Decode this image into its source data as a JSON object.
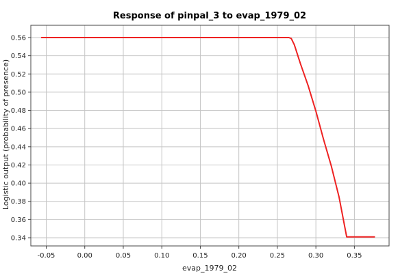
{
  "chart_data": {
    "type": "line",
    "title": "Response of pinpal_3 to evap_1979_02",
    "xlabel": "evap_1979_02",
    "ylabel": "Logistic output (probability of presence)",
    "xlim": [
      -0.07,
      0.395
    ],
    "ylim": [
      0.331,
      0.5735
    ],
    "x_ticks": [
      -0.05,
      0.0,
      0.05,
      0.1,
      0.15,
      0.2,
      0.25,
      0.3,
      0.35
    ],
    "x_tick_labels": [
      "-0.05",
      "0.00",
      "0.05",
      "0.10",
      "0.15",
      "0.20",
      "0.25",
      "0.30",
      "0.35"
    ],
    "y_ticks": [
      0.34,
      0.36,
      0.38,
      0.4,
      0.42,
      0.44,
      0.46,
      0.48,
      0.5,
      0.52,
      0.54,
      0.56
    ],
    "y_tick_labels": [
      "0.34",
      "0.36",
      "0.38",
      "0.40",
      "0.42",
      "0.44",
      "0.46",
      "0.48",
      "0.50",
      "0.52",
      "0.54",
      "0.56"
    ],
    "grid": true,
    "series": [
      {
        "color": "#ee2222",
        "x": [
          -0.056,
          0.265,
          0.268,
          0.272,
          0.28,
          0.29,
          0.3,
          0.31,
          0.32,
          0.33,
          0.34,
          0.376
        ],
        "y": [
          0.56,
          0.56,
          0.559,
          0.552,
          0.531,
          0.507,
          0.479,
          0.448,
          0.419,
          0.385,
          0.341,
          0.341
        ]
      }
    ]
  }
}
